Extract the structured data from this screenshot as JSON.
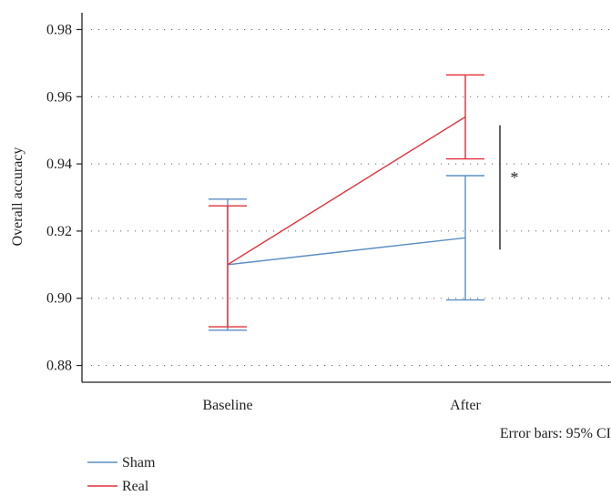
{
  "chart_data": {
    "type": "line",
    "title": "",
    "xlabel": "",
    "ylabel": "Overall accuracy",
    "categories": [
      "Baseline",
      "After"
    ],
    "ylim": [
      0.875,
      0.985
    ],
    "yticks": [
      "0.88",
      "0.90",
      "0.92",
      "0.94",
      "0.96",
      "0.98"
    ],
    "grid": "horizontal-dotted",
    "legend_placement": "bottom-left",
    "note": "Error bars: 95% CI",
    "series": [
      {
        "name": "Sham",
        "color": "#5b8ec4",
        "values": [
          0.91,
          0.918
        ],
        "ci_low": [
          0.8905,
          0.8995
        ],
        "ci_high": [
          0.9295,
          0.9365
        ]
      },
      {
        "name": "Real",
        "color": "#e0303a",
        "values": [
          0.91,
          0.954
        ],
        "ci_low": [
          0.8915,
          0.9415
        ],
        "ci_high": [
          0.9275,
          0.9665
        ]
      }
    ],
    "significance": {
      "label": "*",
      "category": "After",
      "range": [
        0.9145,
        0.9515
      ]
    }
  }
}
